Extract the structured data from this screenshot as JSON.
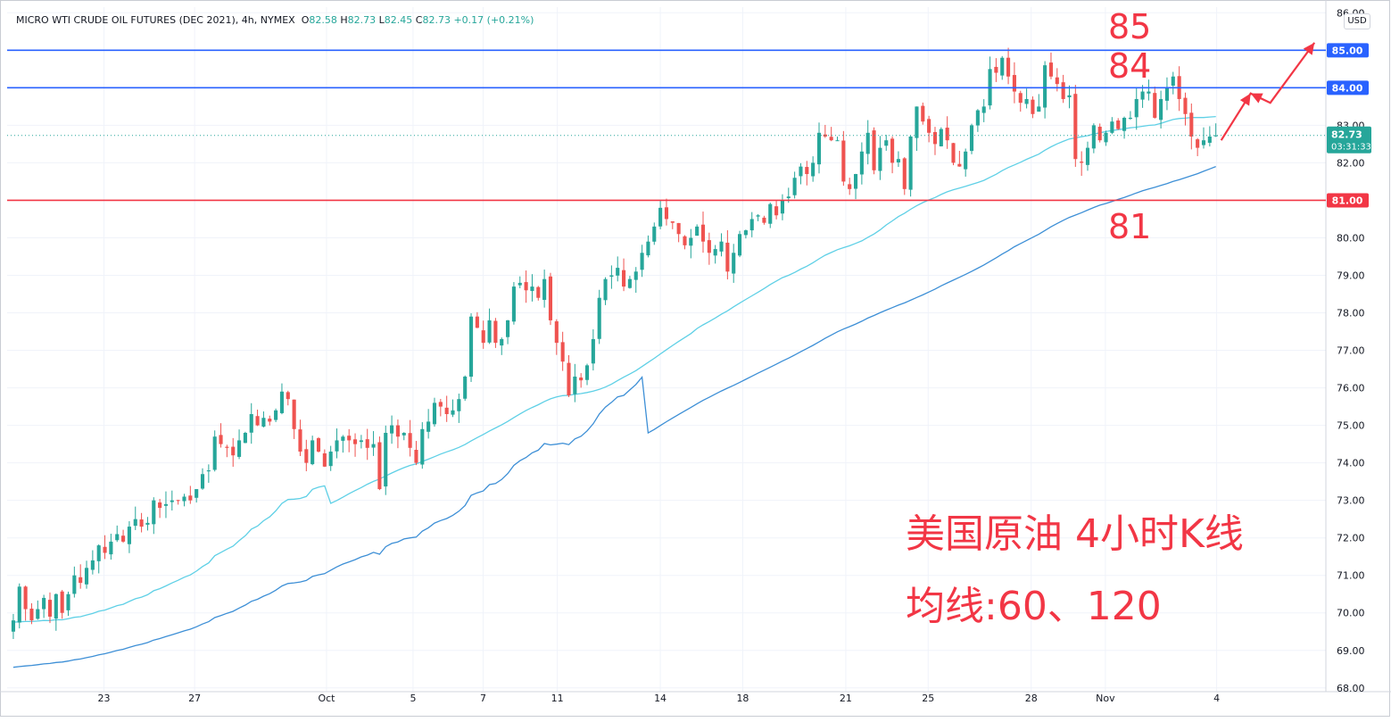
{
  "legend": {
    "symbol": "MICRO WTI CRUDE OIL FUTURES (DEC 2021)",
    "interval": "4h",
    "exchange": "NYMEX",
    "o_label": "O",
    "o_value": "82.58",
    "h_label": "H",
    "h_value": "82.73",
    "l_label": "L",
    "l_value": "82.45",
    "c_label": "C",
    "c_value": "82.73",
    "change": "+0.17 (+0.21%)"
  },
  "currency": "USD",
  "annotations": {
    "level_85": "85",
    "level_84": "84",
    "level_81": "81",
    "title": "美国原油 4小时K线",
    "ma_note": "均线:60、120"
  },
  "colors": {
    "up": "#26a69a",
    "down": "#ef5350",
    "ma60": "#5fd0e6",
    "ma120": "#3d8fd6",
    "resistance": "#2962ff",
    "support": "#f23645",
    "annotation": "#f23645"
  },
  "chart_data": {
    "type": "candlestick",
    "y_axis": {
      "ticks": [
        "68.00",
        "69.00",
        "70.00",
        "71.00",
        "72.00",
        "73.00",
        "74.00",
        "75.00",
        "76.00",
        "77.00",
        "78.00",
        "79.00",
        "80.00",
        "81.00",
        "82.00",
        "83.00",
        "84.00",
        "85.00",
        "86.00"
      ],
      "range": [
        67.9,
        86.15
      ],
      "position": "right"
    },
    "x_axis": {
      "labels": [
        {
          "label": "23",
          "bar": 23
        },
        {
          "label": "27",
          "bar": 45
        },
        {
          "label": "Oct",
          "bar": 77
        },
        {
          "label": "5",
          "bar": 98
        },
        {
          "label": "7",
          "bar": 115
        },
        {
          "label": "11",
          "bar": 133
        },
        {
          "label": "14",
          "bar": 158
        },
        {
          "label": "18",
          "bar": 178
        },
        {
          "label": "21",
          "bar": 203
        },
        {
          "label": "25",
          "bar": 223
        },
        {
          "label": "28",
          "bar": 248
        },
        {
          "label": "Nov",
          "bar": 266
        },
        {
          "label": "4",
          "bar": 293
        }
      ],
      "bar_count": 320
    },
    "ohlc_closes": [
      69.8,
      70.7,
      70.1,
      69.8,
      70.1,
      70.4,
      69.9,
      70.5,
      70.0,
      70.5,
      71.0,
      70.8,
      71.2,
      71.4,
      71.8,
      71.6,
      71.9,
      72.1,
      71.9,
      72.3,
      72.5,
      72.3,
      72.4,
      73.0,
      72.8,
      72.9,
      73.0,
      73.0,
      73.1,
      73.0,
      73.3,
      73.7,
      73.8,
      74.7,
      74.5,
      74.4,
      74.2,
      74.6,
      74.8,
      75.3,
      75.0,
      75.2,
      75.1,
      75.4,
      75.9,
      75.7,
      74.9,
      74.3,
      74.0,
      74.6,
      74.3,
      73.9,
      74.3,
      74.6,
      74.7,
      74.6,
      74.5,
      74.6,
      74.4,
      74.5,
      73.3,
      74.8,
      75.0,
      74.7,
      74.8,
      74.4,
      74.0,
      74.9,
      75.1,
      75.6,
      75.5,
      75.3,
      75.4,
      75.7,
      76.3,
      77.9,
      77.6,
      77.2,
      77.8,
      77.2,
      77.3,
      77.8,
      78.7,
      78.8,
      78.6,
      78.7,
      78.4,
      78.9,
      77.8,
      77.2,
      76.7,
      75.8,
      76.3,
      76.2,
      76.6,
      77.3,
      78.4,
      78.9,
      79.0,
      79.2,
      78.7,
      78.9,
      79.1,
      79.6,
      79.9,
      80.3,
      80.8,
      80.5,
      80.4,
      80.1,
      79.8,
      80.0,
      80.3,
      79.9,
      79.6,
      79.7,
      79.9,
      79.1,
      79.6,
      80.1,
      80.2,
      80.5,
      80.6,
      80.4,
      80.9,
      80.6,
      81.0,
      81.1,
      81.6,
      81.9,
      81.7,
      82.0,
      82.8,
      82.7,
      82.6,
      82.6,
      81.5,
      81.3,
      81.7,
      82.3,
      82.8,
      81.8,
      82.4,
      82.6,
      82.0,
      82.1,
      81.3,
      82.7,
      83.5,
      83.1,
      82.8,
      82.5,
      82.9,
      82.6,
      82.0,
      81.9,
      82.3,
      83.0,
      83.4,
      83.5,
      84.5,
      84.4,
      84.8,
      84.3,
      83.9,
      83.6,
      83.7,
      83.3,
      83.5,
      84.6,
      84.3,
      84.1,
      83.7,
      83.8,
      82.1,
      82.0,
      82.4,
      83.0,
      82.6,
      82.8,
      83.1,
      82.9,
      83.2,
      83.2,
      83.7,
      83.9,
      83.9,
      83.2,
      83.7,
      84.0,
      84.3,
      83.7,
      83.3,
      82.7,
      82.4,
      82.6,
      82.7,
      82.73
    ],
    "ma60_last": 83.3,
    "ma120_last": 81.75,
    "horizontal_levels": [
      {
        "value": 85.0,
        "label": "85.00",
        "color": "resistance"
      },
      {
        "value": 84.0,
        "label": "84.00",
        "color": "resistance"
      },
      {
        "value": 81.0,
        "label": "81.00",
        "color": "support"
      }
    ],
    "last_price": {
      "value": 82.73,
      "label": "82.73",
      "countdown": "03:31:33"
    },
    "projected_path": [
      [
        0,
        82.6
      ],
      [
        6,
        83.85
      ],
      [
        10,
        83.6
      ],
      [
        19,
        85.2
      ]
    ]
  }
}
